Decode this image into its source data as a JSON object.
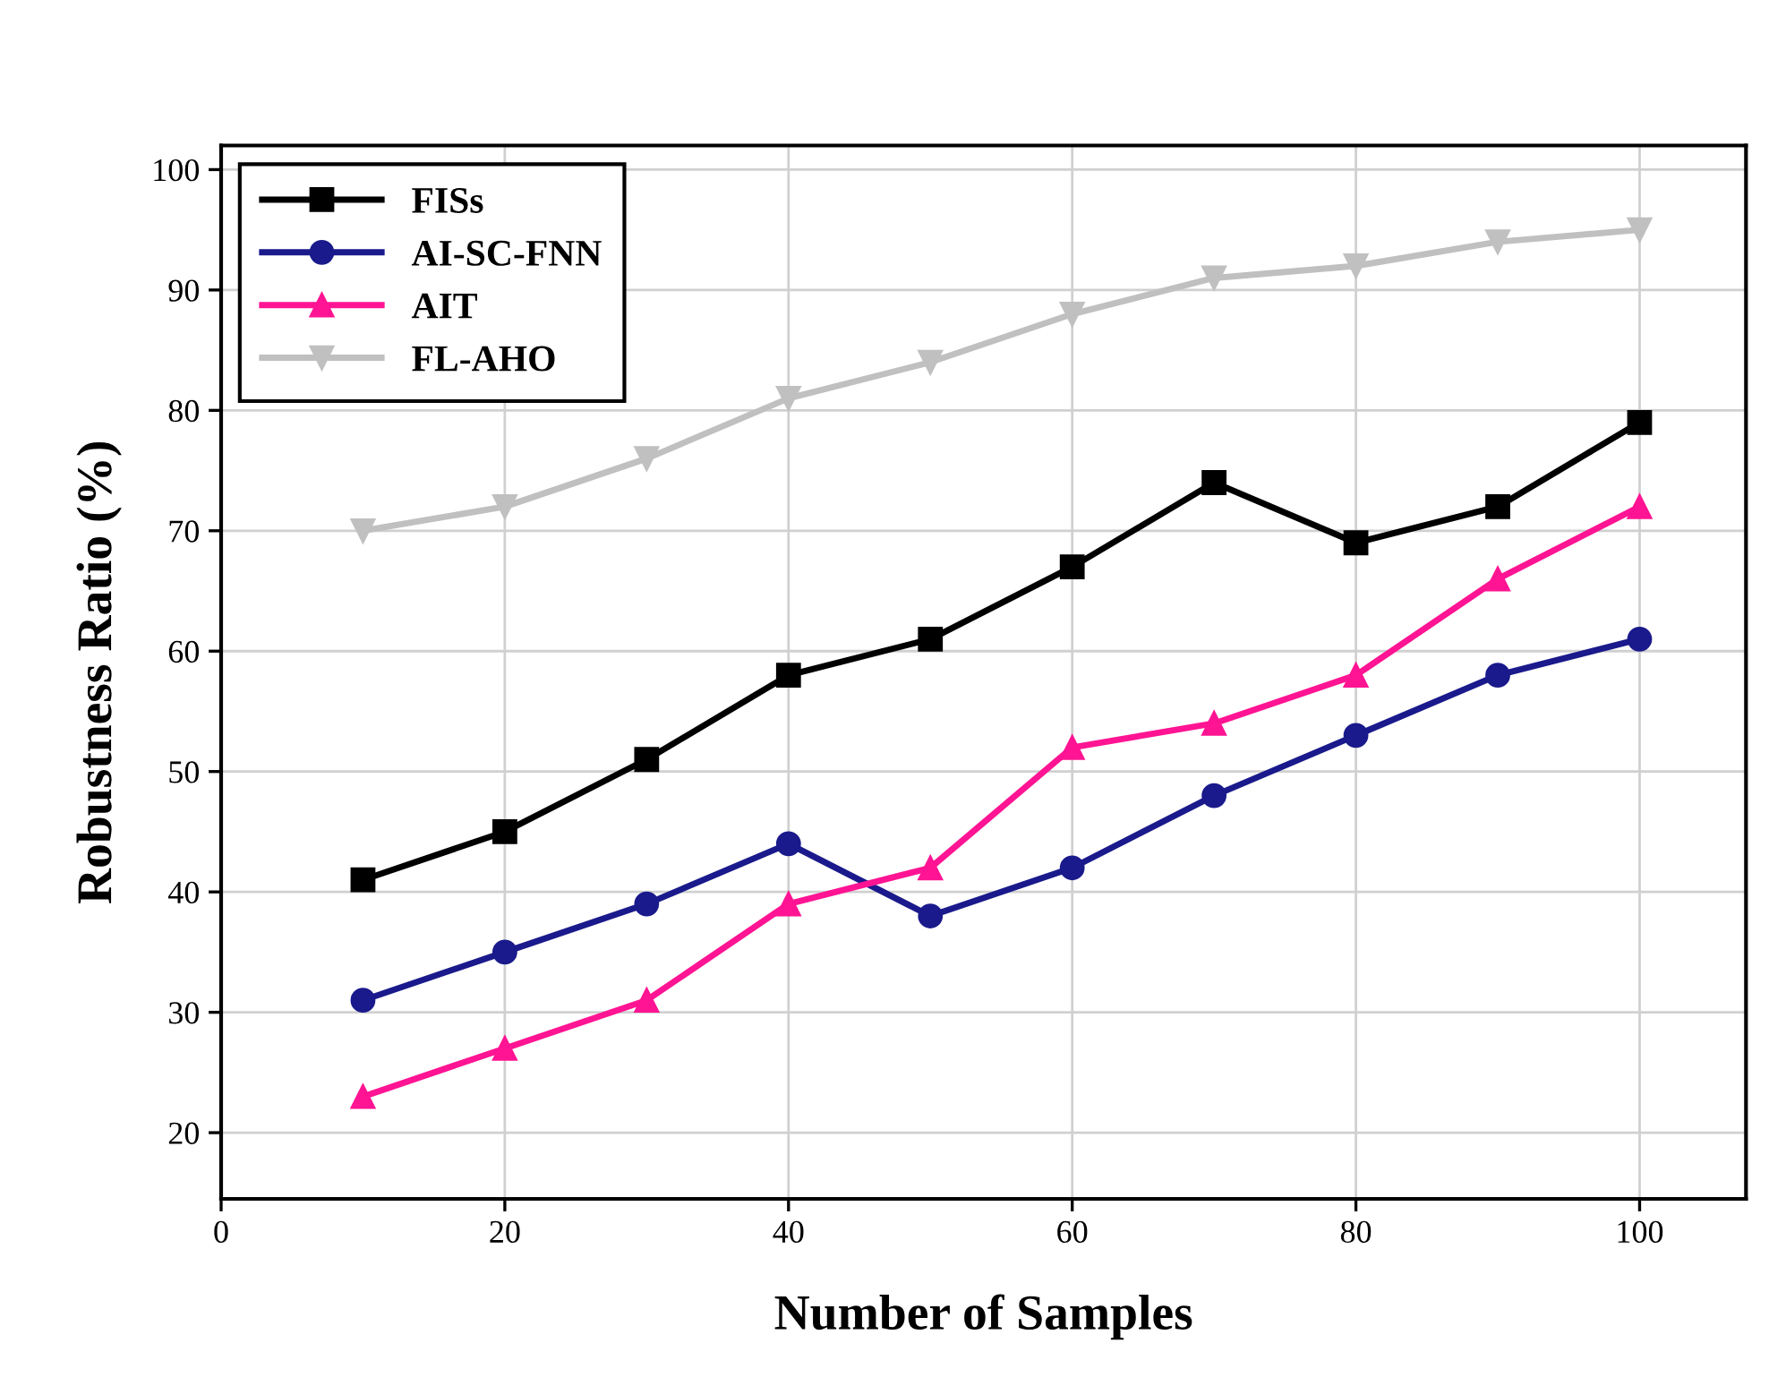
{
  "chart_data": {
    "type": "line",
    "xlabel": "Number of Samples",
    "ylabel": "Robustness Ratio (%)",
    "x": [
      10,
      20,
      30,
      40,
      50,
      60,
      70,
      80,
      90,
      100
    ],
    "series": [
      {
        "name": "FISs",
        "color": "#000000",
        "marker": "square",
        "values": [
          41,
          45,
          51,
          58,
          61,
          67,
          74,
          69,
          72,
          79
        ]
      },
      {
        "name": "AI-SC-FNN",
        "color": "#1a1a8c",
        "marker": "circle",
        "values": [
          31,
          35,
          39,
          44,
          38,
          42,
          48,
          53,
          58,
          61
        ]
      },
      {
        "name": "AIT",
        "color": "#ff1493",
        "marker": "triangle",
        "values": [
          23,
          27,
          31,
          39,
          42,
          52,
          54,
          58,
          66,
          72
        ]
      },
      {
        "name": "FL-AHO",
        "color": "#c0c0c0",
        "marker": "triangle_down",
        "values": [
          70,
          72,
          76,
          81,
          84,
          88,
          91,
          92,
          94,
          95
        ]
      }
    ],
    "xlim": [
      0,
      107.5
    ],
    "ylim": [
      14.5,
      102
    ],
    "xticks": [
      0,
      20,
      40,
      60,
      80,
      100
    ],
    "yticks": [
      20,
      30,
      40,
      50,
      60,
      70,
      80,
      90,
      100
    ],
    "grid": true,
    "legend": "top left",
    "line_style": "solid"
  }
}
